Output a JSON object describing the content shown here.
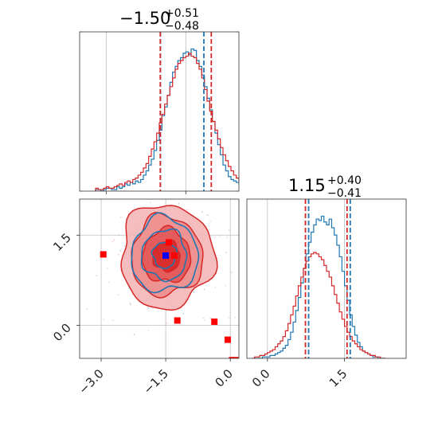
{
  "chart_data": [
    {
      "type": "histogram",
      "panel": "top-left",
      "parameter_index": 0,
      "title_value": "−1.50",
      "title_plus": "+0.51",
      "title_minus": "−0.48",
      "xlim": [
        -3.5,
        -0.5
      ],
      "grid": true,
      "bin_width": 0.05,
      "series": [
        {
          "color": "#1f77b4",
          "bins_start": -3.2,
          "counts": [
            1,
            1,
            0,
            1,
            2,
            2,
            1,
            1,
            3,
            2,
            3,
            5,
            4,
            6,
            5,
            7,
            6,
            8,
            11,
            14,
            18,
            22,
            28,
            35,
            42,
            52,
            58,
            66,
            75,
            82,
            86,
            90,
            92,
            95,
            96,
            94,
            98,
            97,
            90,
            86,
            80,
            72,
            64,
            56,
            48,
            40,
            32,
            25,
            18,
            14,
            10,
            8,
            7,
            6,
            5,
            4,
            3,
            3,
            2,
            2,
            1,
            1
          ],
          "quantiles": [
            -1.98,
            -1.5,
            -1.16
          ]
        },
        {
          "color": "#d62728",
          "bins_start": -3.2,
          "counts": [
            2,
            1,
            1,
            2,
            3,
            2,
            2,
            3,
            4,
            5,
            4,
            6,
            7,
            6,
            8,
            9,
            11,
            13,
            16,
            19,
            24,
            29,
            34,
            40,
            47,
            53,
            60,
            66,
            72,
            78,
            84,
            88,
            90,
            92,
            93,
            95,
            93,
            92,
            88,
            84,
            78,
            70,
            62,
            55,
            48,
            42,
            36,
            30,
            25,
            21,
            17,
            14,
            11,
            9,
            7,
            5,
            4,
            3,
            3,
            2,
            1,
            1
          ],
          "quantiles": [
            -1.98,
            -1.5,
            -1.02
          ]
        }
      ]
    },
    {
      "type": "histogram",
      "panel": "bottom-right",
      "parameter_index": 1,
      "title_value": "1.15",
      "title_plus": "+0.40",
      "title_minus": "−0.41",
      "xlim": [
        -0.4,
        2.7
      ],
      "xticks": [
        "0.0",
        "1.5"
      ],
      "grid": true,
      "bin_width": 0.05,
      "series": [
        {
          "color": "#1f77b4",
          "bins_start": -0.3,
          "counts": [
            0,
            0,
            0,
            0,
            1,
            1,
            1,
            2,
            2,
            3,
            4,
            5,
            7,
            9,
            13,
            18,
            25,
            33,
            42,
            52,
            62,
            72,
            80,
            87,
            92,
            96,
            95,
            98,
            94,
            92,
            96,
            90,
            85,
            78,
            70,
            60,
            50,
            40,
            30,
            22,
            16,
            11,
            8,
            5,
            4,
            3,
            2,
            1,
            1,
            0,
            0,
            0
          ],
          "quantiles": [
            0.74,
            1.15,
            1.55
          ]
        },
        {
          "color": "#d62728",
          "bins_start": -0.3,
          "counts": [
            0,
            1,
            1,
            2,
            2,
            3,
            4,
            5,
            6,
            8,
            10,
            12,
            15,
            19,
            24,
            30,
            36,
            43,
            50,
            56,
            62,
            67,
            70,
            72,
            73,
            72,
            70,
            68,
            64,
            60,
            56,
            50,
            44,
            38,
            32,
            27,
            22,
            18,
            15,
            12,
            10,
            8,
            6,
            5,
            4,
            3,
            2,
            2,
            1,
            1,
            0,
            0
          ],
          "quantiles": [
            0.74,
            1.15,
            1.55
          ]
        }
      ]
    },
    {
      "type": "contour-scatter",
      "panel": "bottom-left",
      "xlim": [
        -3.5,
        0.2
      ],
      "ylim": [
        -0.55,
        2.1
      ],
      "xticks": [
        "−3.0",
        "−1.5",
        "0.0"
      ],
      "yticks": [
        "0.0",
        "1.5"
      ],
      "grid": true,
      "center": [
        -1.5,
        1.15
      ],
      "contour_levels_red": [
        0.35,
        0.62,
        0.92,
        1.2
      ],
      "contour_levels_blue": [
        0.3,
        0.58,
        0.86
      ],
      "sigma": [
        0.5,
        0.4
      ],
      "marked_points": [
        {
          "x": -1.43,
          "y": 1.38,
          "color": "#ff0000"
        },
        {
          "x": -1.3,
          "y": 1.16,
          "color": "#ff0000"
        },
        {
          "x": -1.5,
          "y": 1.16,
          "color": "#0000ff"
        },
        {
          "x": -1.23,
          "y": 0.08,
          "color": "#ff0000"
        },
        {
          "x": -0.37,
          "y": 0.06,
          "color": "#ff0000"
        },
        {
          "x": -0.06,
          "y": -0.24,
          "color": "#ff0000"
        },
        {
          "x": 0.04,
          "y": -0.58,
          "color": "#ff0000"
        },
        {
          "x": 0.12,
          "y": -0.58,
          "color": "#ff0000"
        },
        {
          "x": -2.95,
          "y": 1.18,
          "color": "#ff0000"
        }
      ]
    }
  ]
}
